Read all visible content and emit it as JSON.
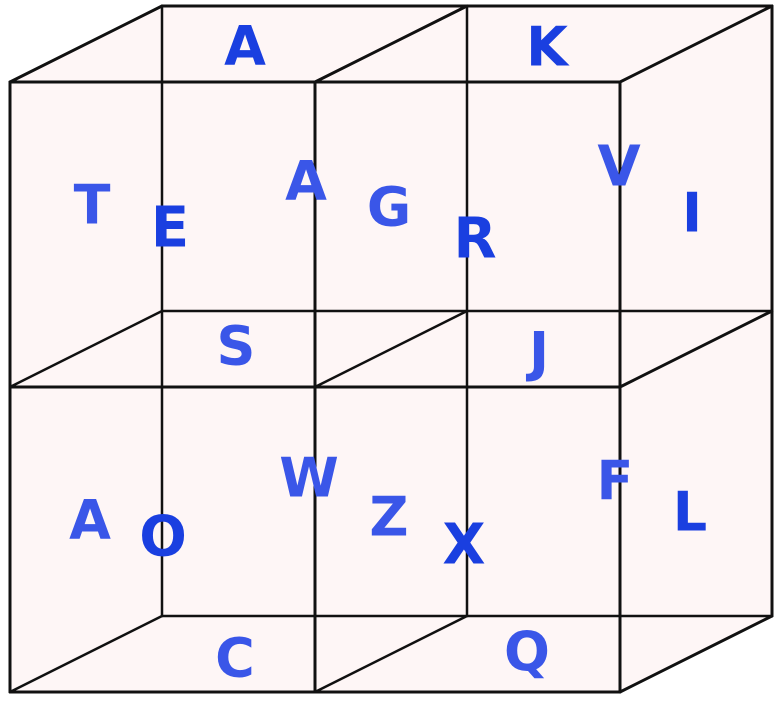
{
  "colors": {
    "letter_front": "#1a3fe0",
    "letter_back": "#3a56e8",
    "face_fill": "#fdeeee",
    "edge": "#111111"
  },
  "letters": {
    "top_back_left": "A",
    "top_back_right": "K",
    "upper_left_face": "T",
    "upper_left_inner": "E",
    "upper_mid_back": "A",
    "upper_mid_front": "G",
    "upper_right_inner": "R",
    "upper_right_back": "V",
    "upper_right_side": "I",
    "middle_left": "S",
    "middle_right": "J",
    "lower_left_face": "A",
    "lower_left_inner": "O",
    "lower_mid_back": "W",
    "lower_mid_front": "Z",
    "lower_right_inner": "X",
    "lower_right_back": "F",
    "lower_right_side": "L",
    "bottom_left": "C",
    "bottom_right": "Q"
  }
}
